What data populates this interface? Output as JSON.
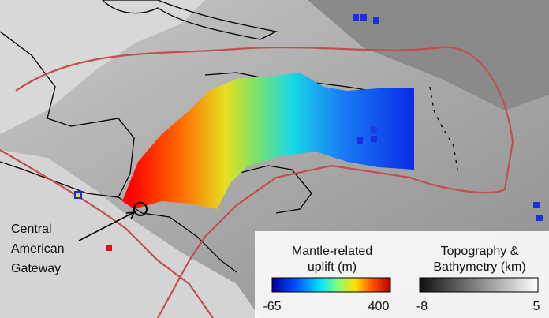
{
  "annotation": {
    "lines": [
      "Central",
      "American",
      "Gateway"
    ]
  },
  "legend": {
    "uplift": {
      "title": [
        "Mantle-related",
        "uplift (m)"
      ],
      "min": -65,
      "max": 400
    },
    "topography": {
      "title": [
        "Topography &",
        "Bathymetry (km)"
      ],
      "min": -8,
      "max": 5
    }
  }
}
